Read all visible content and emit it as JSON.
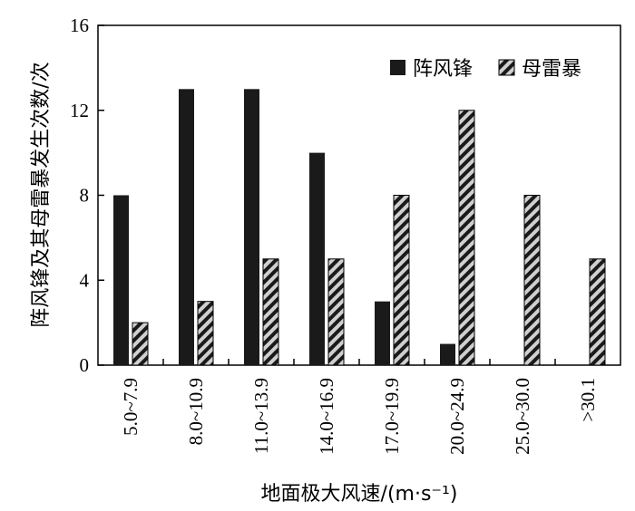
{
  "chart_data": {
    "type": "bar",
    "xlabel": "地面极大风速/(m·s⁻¹)",
    "ylabel": "阵风锋及其母雷暴发生次数/次",
    "categories": [
      "5.0~7.9",
      "8.0~10.9",
      "11.0~13.9",
      "14.0~16.9",
      "17.0~19.9",
      "20.0~24.9",
      "25.0~30.0",
      ">30.1"
    ],
    "ylim": [
      0,
      16
    ],
    "yticks": [
      "0",
      "4",
      "8",
      "12",
      "16"
    ],
    "grid": false,
    "legend_position": "top-right",
    "series": [
      {
        "name": "阵风锋",
        "values": [
          8,
          13,
          13,
          10,
          3,
          1,
          0,
          0
        ],
        "color": "#1a1a1a",
        "pattern": "solid"
      },
      {
        "name": "母雷暴",
        "values": [
          2,
          3,
          5,
          5,
          8,
          12,
          8,
          5
        ],
        "color": "#c8c8c8",
        "pattern": "diagonal-hatch"
      }
    ]
  }
}
